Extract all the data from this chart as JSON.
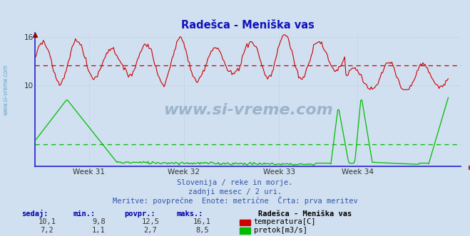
{
  "title": "Radešca - Meniška vas",
  "bg_color": "#d0e0f0",
  "plot_bg_color": "#d0e0f0",
  "grid_color": "#b8c8d8",
  "temp_color": "#cc0000",
  "flow_color": "#00bb00",
  "avg_temp_color": "#cc0000",
  "avg_flow_color": "#00bb00",
  "x_tick_labels": [
    "Week 31",
    "Week 32",
    "Week 33",
    "Week 34"
  ],
  "ylim": [
    0,
    16.5
  ],
  "yticks": [
    10,
    16
  ],
  "subtitle_line1": "Slovenija / reke in morje.",
  "subtitle_line2": "zadnji mesec / 2 uri.",
  "subtitle_line3": "Meritve: povprečne  Enote: metrične  Črta: prva meritev",
  "footer_col_headers": [
    "sedaj:",
    "min.:",
    "povpr.:",
    "maks.:"
  ],
  "footer_row1_vals": [
    "10,1",
    "9,8",
    "12,5",
    "16,1"
  ],
  "footer_row2_vals": [
    "7,2",
    "1,1",
    "2,7",
    "8,5"
  ],
  "footer_station": "Radešca - Meniška vas",
  "footer_label1": "temperatura[C]",
  "footer_label2": "pretok[m3/s]",
  "avg_temp": 12.5,
  "avg_flow": 2.7,
  "watermark": "www.si-vreme.com"
}
